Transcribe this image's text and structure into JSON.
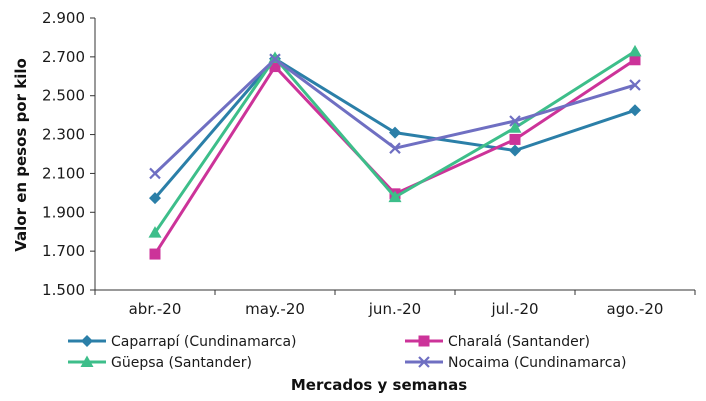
{
  "chart_data": {
    "type": "line",
    "categories": [
      "abr.-20",
      "may.-20",
      "jun.-20",
      "jul.-20",
      "ago.-20"
    ],
    "series": [
      {
        "name": "Caparrapí (Cundinamarca)",
        "color": "#2B7FA8",
        "marker": "diamond",
        "values": [
          1973,
          2690,
          2310,
          2218,
          2425
        ]
      },
      {
        "name": "Charalá (Santander)",
        "color": "#CC3399",
        "marker": "square",
        "values": [
          1685,
          2650,
          1995,
          2275,
          2685
        ]
      },
      {
        "name": "Güepsa (Santander)",
        "color": "#3DBE8A",
        "marker": "triangle",
        "values": [
          1795,
          2695,
          1978,
          2335,
          2728
        ]
      },
      {
        "name": "Nocaima (Cundinamarca)",
        "color": "#6F6FC2",
        "marker": "x",
        "values": [
          2100,
          2688,
          2230,
          2370,
          2555
        ]
      }
    ],
    "yticks": [
      "1.500",
      "1.700",
      "1.900",
      "2.100",
      "2.300",
      "2.500",
      "2.700",
      "2.900"
    ],
    "ylim": [
      1500,
      2900
    ],
    "ylabel": "Valor en pesos por kilo",
    "xlabel": "Mercados y semanas",
    "grid": false,
    "legend_position": "bottom"
  }
}
